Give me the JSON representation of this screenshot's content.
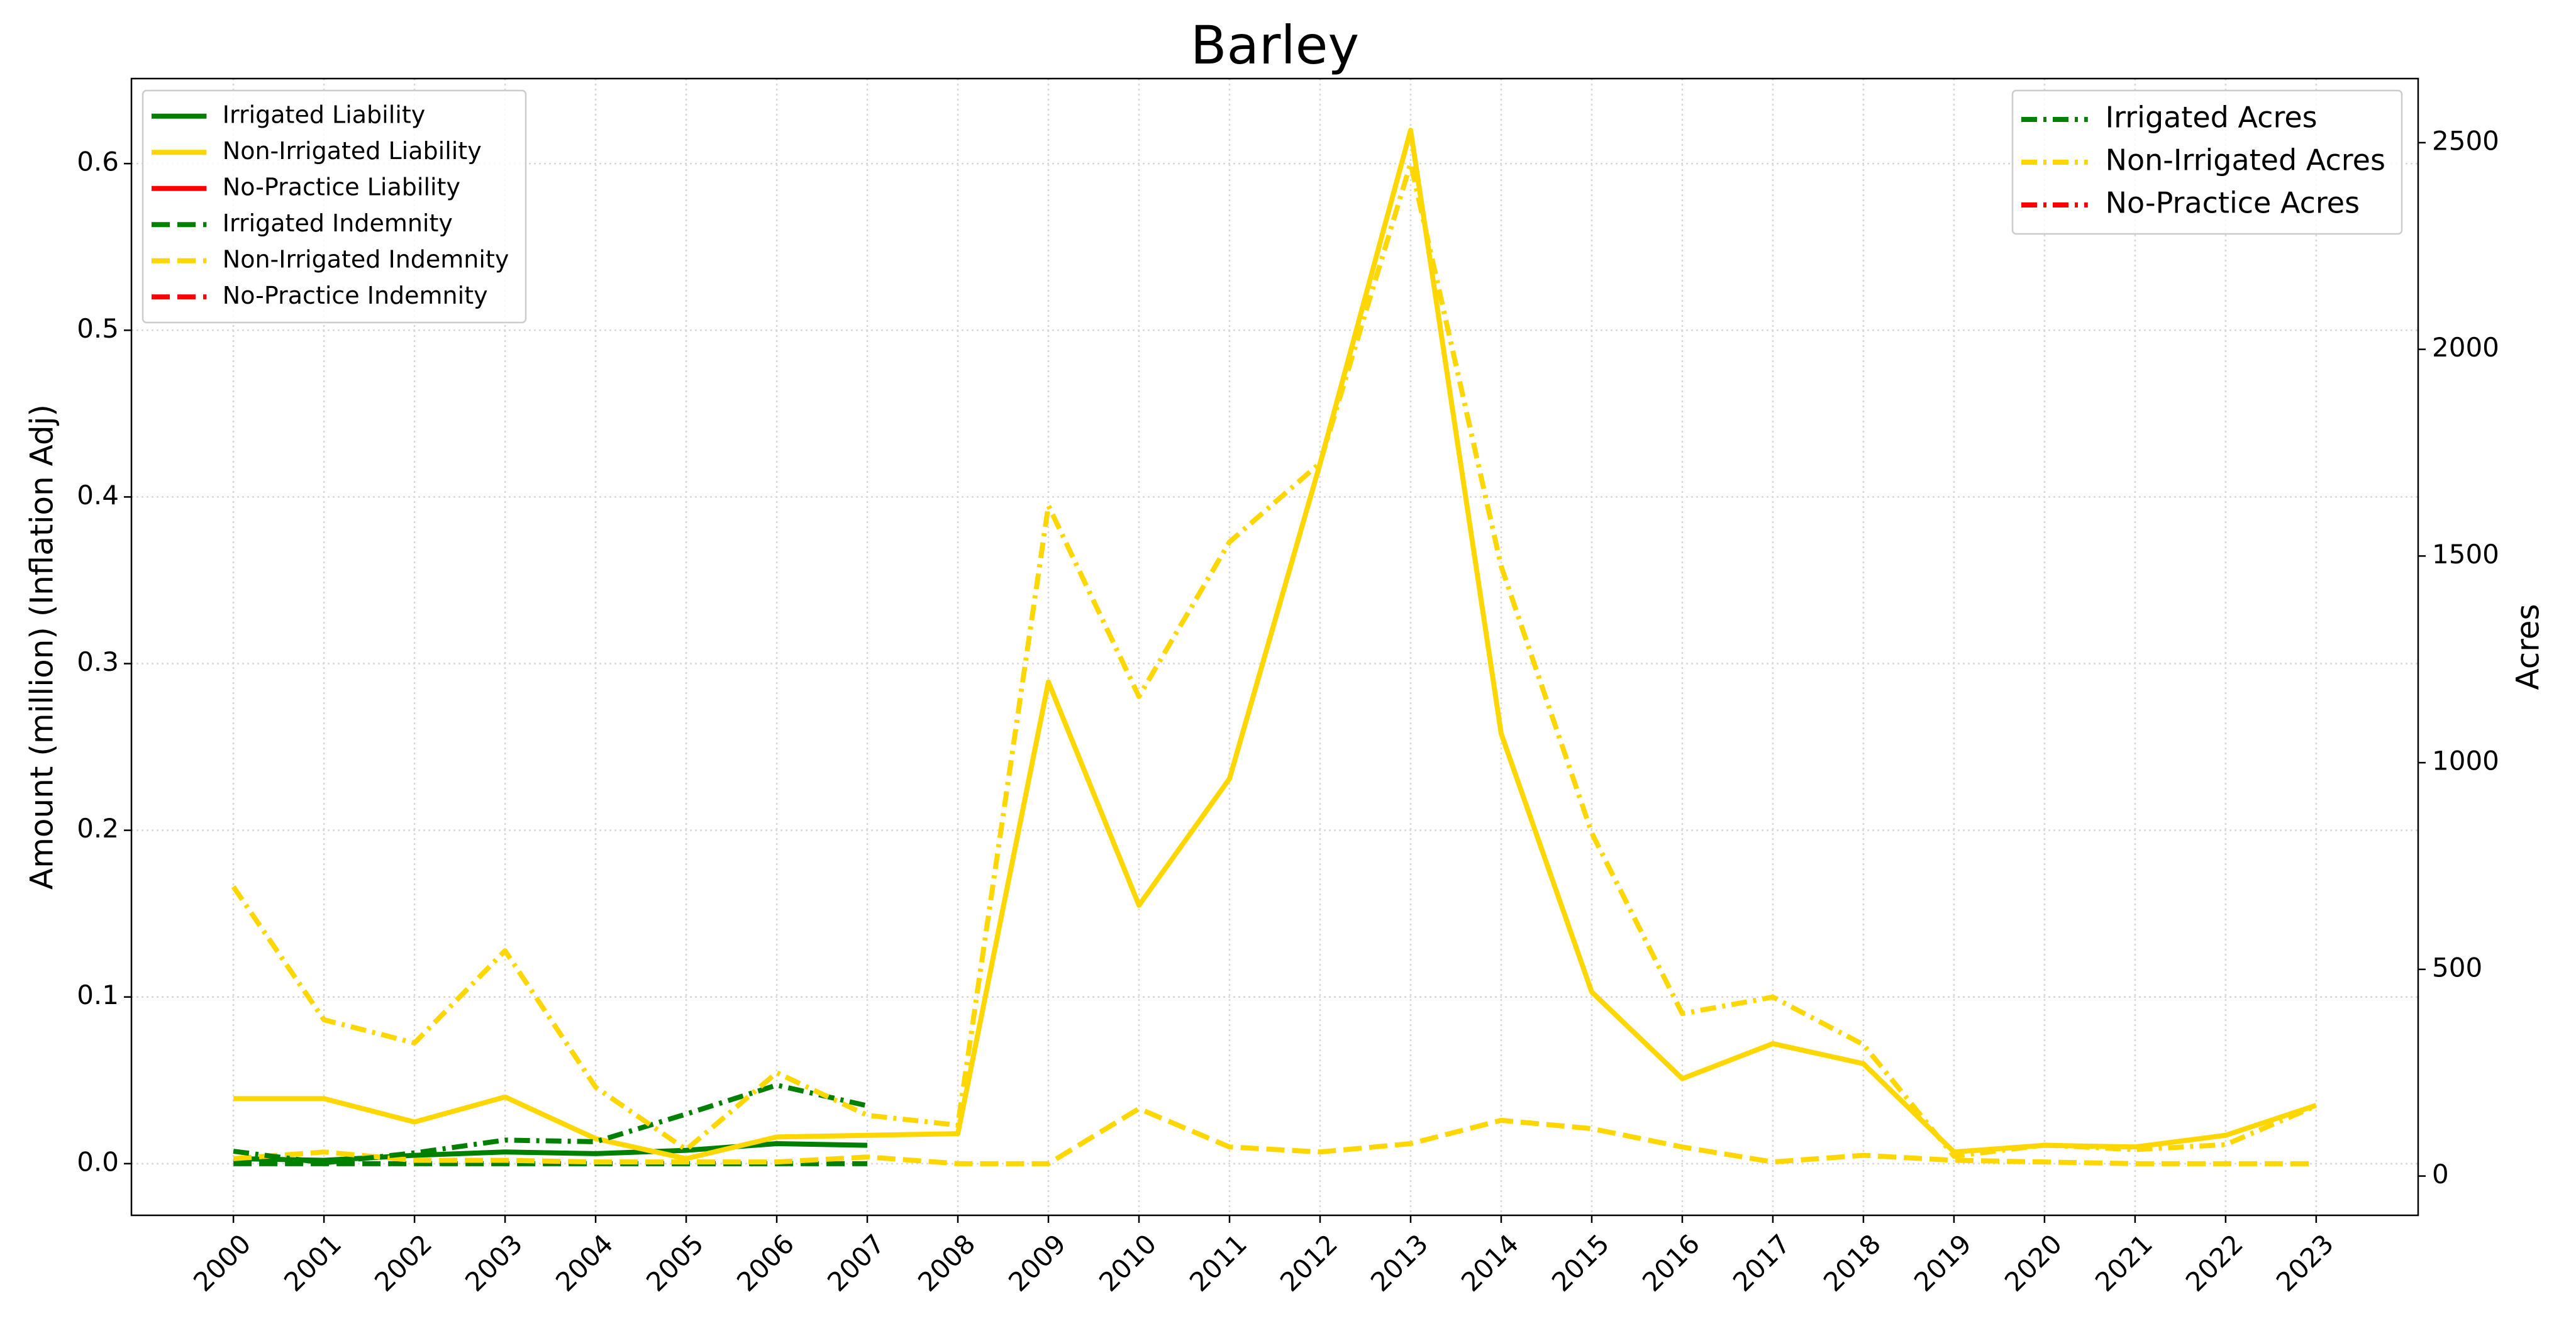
{
  "chart_data": {
    "type": "line",
    "title": "Barley",
    "ylabel": "Amount (million) (Inflation Adj)",
    "y2label": "Acres",
    "categories": [
      "2000",
      "2001",
      "2002",
      "2003",
      "2004",
      "2005",
      "2006",
      "2007",
      "2008",
      "2009",
      "2010",
      "2011",
      "2012",
      "2013",
      "2014",
      "2015",
      "2016",
      "2017",
      "2018",
      "2019",
      "2020",
      "2021",
      "2022",
      "2023"
    ],
    "ylim": [
      -0.031,
      0.651
    ],
    "yticks": [
      {
        "value": 0,
        "label": "0.0"
      },
      {
        "value": 0.1,
        "label": "0.1"
      },
      {
        "value": 0.2,
        "label": "0.2"
      },
      {
        "value": 0.3,
        "label": "0.3"
      },
      {
        "value": 0.4,
        "label": "0.4"
      },
      {
        "value": 0.5,
        "label": "0.5"
      },
      {
        "value": 0.6,
        "label": "0.6"
      }
    ],
    "y2lim": [
      -95,
      2655
    ],
    "y2ticks": [
      0,
      500,
      1000,
      1500,
      2000,
      2500
    ],
    "grid": true,
    "legend": "upper left",
    "legend2": "upper right",
    "series": [
      {
        "name": "Irrigated Liability",
        "color": "#008000",
        "linestyle": "solid",
        "axis": "y",
        "values": [
          0.003,
          0.002,
          0.005,
          0.007,
          0.006,
          0.008,
          0.012,
          0.011,
          null,
          null,
          null,
          null,
          null,
          null,
          null,
          null,
          null,
          null,
          null,
          null,
          null,
          null,
          null,
          null
        ]
      },
      {
        "name": "Non-Irrigated Liability",
        "color": "#ffd700",
        "linestyle": "solid",
        "axis": "y",
        "values": [
          0.039,
          0.039,
          0.025,
          0.04,
          0.015,
          0.003,
          0.016,
          0.017,
          0.018,
          0.289,
          0.155,
          0.231,
          0.42,
          0.62,
          0.258,
          0.103,
          0.051,
          0.072,
          0.06,
          0.007,
          0.011,
          0.01,
          0.017,
          0.035
        ]
      },
      {
        "name": "No-Practice Liability",
        "color": "#ff0000",
        "linestyle": "solid",
        "axis": "y",
        "values": [
          null,
          null,
          null,
          null,
          null,
          null,
          null,
          null,
          null,
          null,
          null,
          null,
          null,
          null,
          null,
          null,
          null,
          null,
          null,
          null,
          null,
          null,
          null,
          null
        ]
      },
      {
        "name": "Irrigated Indemnity",
        "color": "#008000",
        "linestyle": "dashed",
        "axis": "y",
        "values": [
          0,
          0,
          0,
          0,
          0,
          0,
          0,
          0,
          null,
          null,
          null,
          null,
          null,
          null,
          null,
          null,
          null,
          null,
          null,
          null,
          null,
          null,
          null,
          null
        ]
      },
      {
        "name": "Non-Irrigated Indemnity",
        "color": "#ffd700",
        "linestyle": "dashed",
        "axis": "y",
        "values": [
          0.003,
          0.007,
          0.002,
          0.002,
          0.001,
          0.001,
          0.001,
          0.004,
          0,
          0,
          0.033,
          0.01,
          0.007,
          0.012,
          0.026,
          0.021,
          0.01,
          0.001,
          0.005,
          0.002,
          0.001,
          0,
          0,
          0
        ]
      },
      {
        "name": "No-Practice Indemnity",
        "color": "#ff0000",
        "linestyle": "dashed",
        "axis": "y",
        "values": [
          null,
          null,
          null,
          null,
          null,
          null,
          null,
          null,
          null,
          null,
          null,
          null,
          null,
          null,
          null,
          null,
          null,
          null,
          null,
          null,
          null,
          null,
          null,
          null
        ]
      },
      {
        "name": "Irrigated Acres",
        "color": "#008000",
        "linestyle": "dashdot",
        "axis": "y2",
        "values": [
          60,
          32,
          56,
          87,
          83,
          150,
          220,
          170,
          null,
          null,
          null,
          null,
          null,
          null,
          null,
          null,
          null,
          null,
          null,
          null,
          null,
          null,
          null,
          null
        ]
      },
      {
        "name": "Non-Irrigated Acres",
        "color": "#ffd700",
        "linestyle": "dashdot",
        "axis": "y2",
        "values": [
          700,
          378,
          322,
          545,
          215,
          64,
          250,
          147,
          123,
          1622,
          1160,
          1534,
          1725,
          2450,
          1475,
          830,
          393,
          433,
          318,
          48,
          75,
          64,
          76,
          170
        ]
      },
      {
        "name": "No-Practice Acres",
        "color": "#ff0000",
        "linestyle": "dashdot",
        "axis": "y2",
        "values": [
          null,
          null,
          null,
          null,
          null,
          null,
          null,
          null,
          null,
          null,
          null,
          null,
          null,
          null,
          null,
          null,
          null,
          null,
          null,
          null,
          null,
          null,
          null,
          null
        ]
      }
    ]
  }
}
